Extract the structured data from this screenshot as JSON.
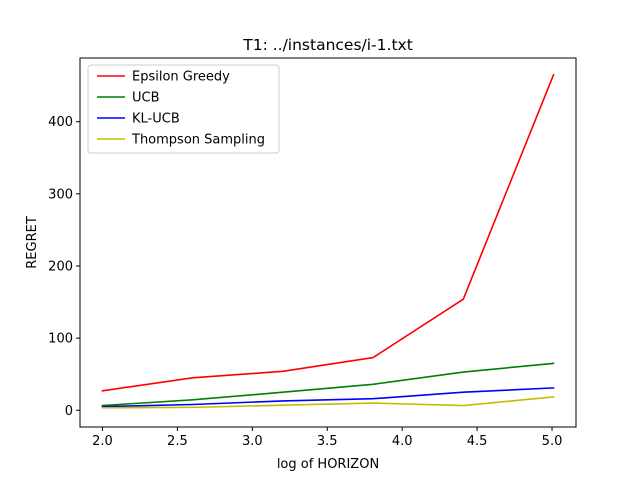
{
  "chart_data": {
    "type": "line",
    "title": "T1: ../instances/i-1.txt",
    "xlabel": "log of HORIZON",
    "ylabel": "REGRET",
    "xlim": [
      1.85,
      5.16
    ],
    "ylim": [
      -23.2,
      488.3
    ],
    "grid": false,
    "legend_position": "top-left",
    "x_ticks": [
      "2.0",
      "2.5",
      "3.0",
      "3.5",
      "4.0",
      "4.5",
      "5.0"
    ],
    "y_ticks": [
      "0",
      "100",
      "200",
      "300",
      "400"
    ],
    "x": [
      2.0,
      2.602,
      3.204,
      3.806,
      4.408,
      5.01
    ],
    "series": [
      {
        "name": "Epsilon Greedy",
        "color": "#ff0000",
        "values": [
          27,
          45,
          54,
          73,
          154,
          465
        ]
      },
      {
        "name": "UCB",
        "color": "#008000",
        "values": [
          6.5,
          14.5,
          25,
          36,
          53,
          65
        ]
      },
      {
        "name": "KL-UCB",
        "color": "#0000ff",
        "values": [
          5,
          8,
          13,
          16,
          25,
          31
        ]
      },
      {
        "name": "Thompson Sampling",
        "color": "#bfbf00",
        "values": [
          3.5,
          4,
          7,
          10,
          6.5,
          18.5
        ]
      }
    ]
  }
}
